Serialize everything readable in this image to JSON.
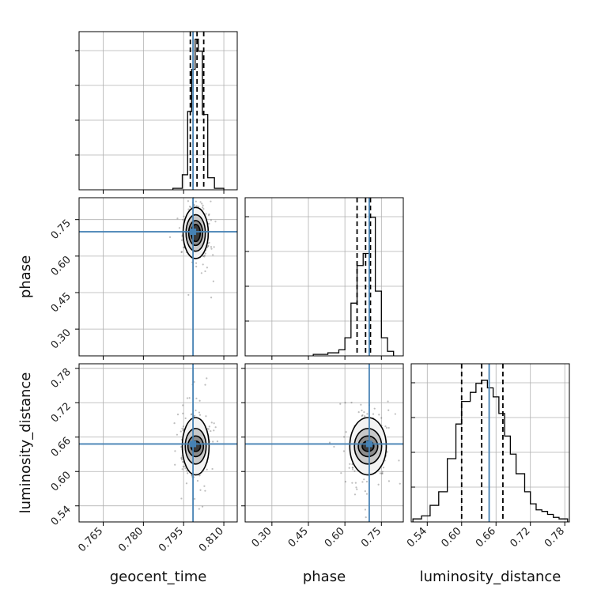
{
  "chart_data": {
    "type": "corner",
    "parameters": [
      "geocent_time",
      "phase",
      "luminosity_distance"
    ],
    "truth_color": "#4682b4",
    "grid": true,
    "ranges": {
      "geocent_time": [
        0.756,
        0.815
      ],
      "phase": [
        0.19,
        0.84
      ],
      "luminosity_distance": [
        0.512,
        0.788
      ]
    },
    "ticks": {
      "geocent_time": [
        "0.765",
        "0.780",
        "0.795",
        "0.810"
      ],
      "phase": [
        "0.30",
        "0.45",
        "0.60",
        "0.75"
      ],
      "luminosity_distance": [
        "0.54",
        "0.60",
        "0.66",
        "0.72",
        "0.78"
      ]
    },
    "truths": {
      "geocent_time": 0.7985,
      "phase": 0.7,
      "luminosity_distance": 0.648
    },
    "quantiles": {
      "geocent_time": [
        0.7975,
        0.8,
        0.8025
      ],
      "phase": [
        0.65,
        0.685,
        0.705
      ],
      "luminosity_distance": [
        0.6,
        0.635,
        0.672
      ]
    },
    "histograms": {
      "geocent_time": {
        "edges": [
          0.791,
          0.7945,
          0.7965,
          0.798,
          0.7993,
          0.8005,
          0.802,
          0.804,
          0.8065,
          0.81
        ],
        "counts": [
          0.01,
          0.1,
          0.52,
          0.8,
          1.0,
          0.92,
          0.5,
          0.08,
          0.01
        ]
      },
      "phase": {
        "edges": [
          0.47,
          0.53,
          0.575,
          0.6,
          0.625,
          0.65,
          0.675,
          0.7,
          0.725,
          0.75,
          0.775,
          0.8
        ],
        "counts": [
          0.01,
          0.02,
          0.04,
          0.12,
          0.35,
          0.6,
          0.68,
          0.92,
          0.43,
          0.12,
          0.03
        ]
      },
      "luminosity_distance": {
        "edges": [
          0.515,
          0.53,
          0.545,
          0.56,
          0.575,
          0.59,
          0.6,
          0.615,
          0.625,
          0.635,
          0.645,
          0.655,
          0.665,
          0.675,
          0.685,
          0.695,
          0.71,
          0.72,
          0.73,
          0.74,
          0.75,
          0.76,
          0.77,
          0.785
        ],
        "counts": [
          0.02,
          0.04,
          0.11,
          0.2,
          0.42,
          0.65,
          0.8,
          0.86,
          0.92,
          0.94,
          0.89,
          0.83,
          0.72,
          0.57,
          0.45,
          0.32,
          0.2,
          0.12,
          0.08,
          0.07,
          0.05,
          0.03,
          0.02
        ]
      }
    },
    "contours": [
      {
        "x": "geocent_time",
        "y": "phase",
        "cx": 0.7995,
        "cy": 0.695,
        "levels": [
          [
            0.0017,
            0.035
          ],
          [
            0.0026,
            0.051
          ],
          [
            0.0036,
            0.075
          ],
          [
            0.0047,
            0.105
          ]
        ]
      },
      {
        "x": "geocent_time",
        "y": "luminosity_distance",
        "cx": 0.7995,
        "cy": 0.644,
        "levels": [
          [
            0.0018,
            0.009
          ],
          [
            0.0029,
            0.018
          ],
          [
            0.0039,
            0.031
          ],
          [
            0.005,
            0.05
          ]
        ]
      },
      {
        "x": "phase",
        "y": "luminosity_distance",
        "cx": 0.695,
        "cy": 0.644,
        "levels": [
          [
            0.024,
            0.009
          ],
          [
            0.04,
            0.018
          ],
          [
            0.056,
            0.031
          ],
          [
            0.075,
            0.05
          ]
        ]
      }
    ]
  }
}
